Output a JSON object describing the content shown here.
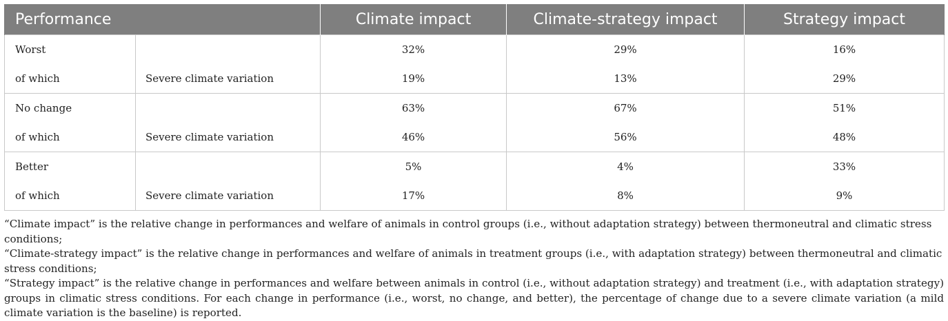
{
  "table": {
    "headers": [
      "Performance",
      "Climate impact",
      "Climate-strategy impact",
      "Strategy impact"
    ],
    "groups": [
      {
        "label": "Worst",
        "values": [
          "32%",
          "29%",
          "16%"
        ],
        "sub_label": "of which",
        "sub_desc": "Severe climate variation",
        "sub_values": [
          "19%",
          "13%",
          "29%"
        ]
      },
      {
        "label": "No change",
        "values": [
          "63%",
          "67%",
          "51%"
        ],
        "sub_label": "of which",
        "sub_desc": "Severe climate variation",
        "sub_values": [
          "46%",
          "56%",
          "48%"
        ]
      },
      {
        "label": "Better",
        "values": [
          "5%",
          "4%",
          "33%"
        ],
        "sub_label": "of which",
        "sub_desc": "Severe climate variation",
        "sub_values": [
          "17%",
          "8%",
          "9%"
        ]
      }
    ]
  },
  "footnote": {
    "line1": "“Climate impact” is the relative change in performances and welfare of animals in control groups (i.e., without adaptation strategy) between thermoneutral and climatic stress conditions;",
    "line2": "“Climate-strategy impact” is the relative change in performances and welfare of animals in treatment groups (i.e., with adaptation strategy) between thermoneutral and climatic stress conditions;",
    "line3": "“Strategy impact” is the relative change in performances and welfare between animals in control (i.e., without adaptation strategy) and treatment (i.e., with adaptation strategy) groups in climatic stress conditions. For each change in performance (i.e., worst, no change, and better), the percentage of change due to a severe climate variation (a mild climate variation is the baseline) is reported."
  }
}
